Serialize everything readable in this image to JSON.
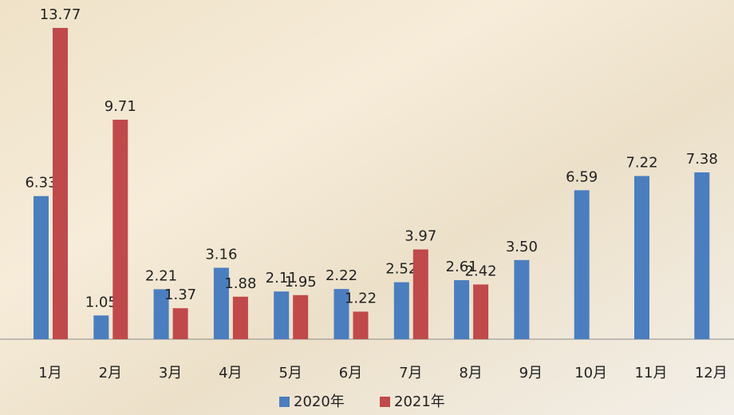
{
  "chart_data": {
    "type": "bar",
    "categories": [
      "1月",
      "2月",
      "3月",
      "4月",
      "5月",
      "6月",
      "7月",
      "8月",
      "9月",
      "10月",
      "11月",
      "12月"
    ],
    "series": [
      {
        "name": "2020年",
        "color": "#4a7ebf",
        "values": [
          6.33,
          1.05,
          2.21,
          3.16,
          2.11,
          2.22,
          2.52,
          2.61,
          3.5,
          6.59,
          7.22,
          7.38
        ],
        "value_labels": [
          "6.33",
          "1.05",
          "2.21",
          "3.16",
          "2.11",
          "2.22",
          "2.52",
          "2.61",
          "3.50",
          "6.59",
          "7.22",
          "7.38"
        ]
      },
      {
        "name": "2021年",
        "color": "#c0494a",
        "values": [
          13.77,
          9.71,
          1.37,
          1.88,
          1.95,
          1.22,
          3.97,
          2.42,
          null,
          null,
          null,
          null
        ],
        "value_labels": [
          "13.77",
          "9.71",
          "1.37",
          "1.88",
          "1.95",
          "1.22",
          "3.97",
          "2.42",
          null,
          null,
          null,
          null
        ]
      }
    ],
    "legend": "bottom"
  }
}
